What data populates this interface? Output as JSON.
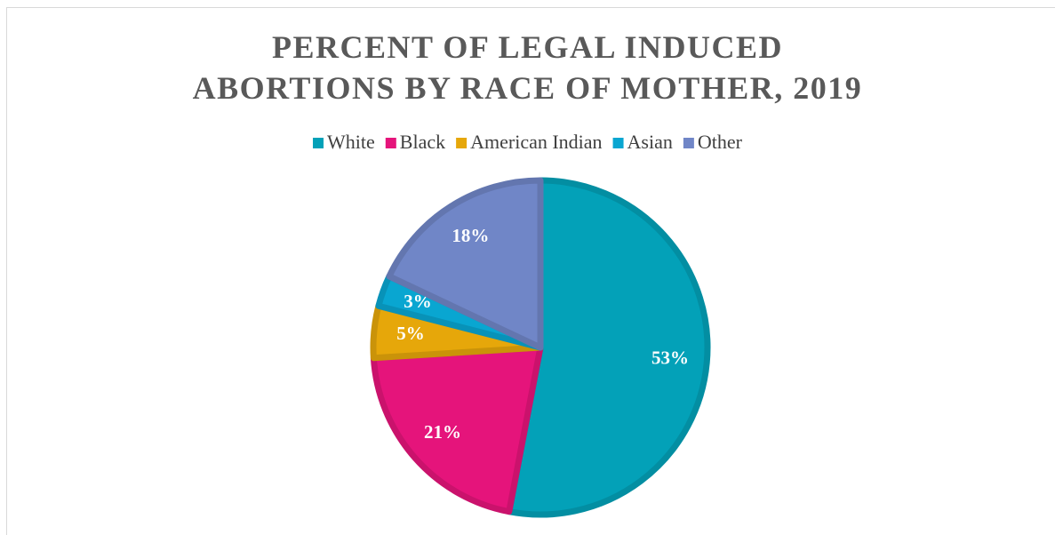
{
  "chart_data": {
    "type": "pie",
    "title": "PERCENT OF LEGAL INDUCED ABORTIONS BY RACE OF MOTHER, 2019",
    "categories": [
      "White",
      "Black",
      "American Indian",
      "Asian",
      "Other"
    ],
    "values": [
      53,
      21,
      5,
      3,
      18
    ],
    "value_labels": [
      "53%",
      "21%",
      "5%",
      "3%",
      "18%"
    ],
    "colors": [
      "#03a1b8",
      "#e5147b",
      "#e6a70a",
      "#09a6d1",
      "#7086c7"
    ],
    "legend": "top"
  }
}
